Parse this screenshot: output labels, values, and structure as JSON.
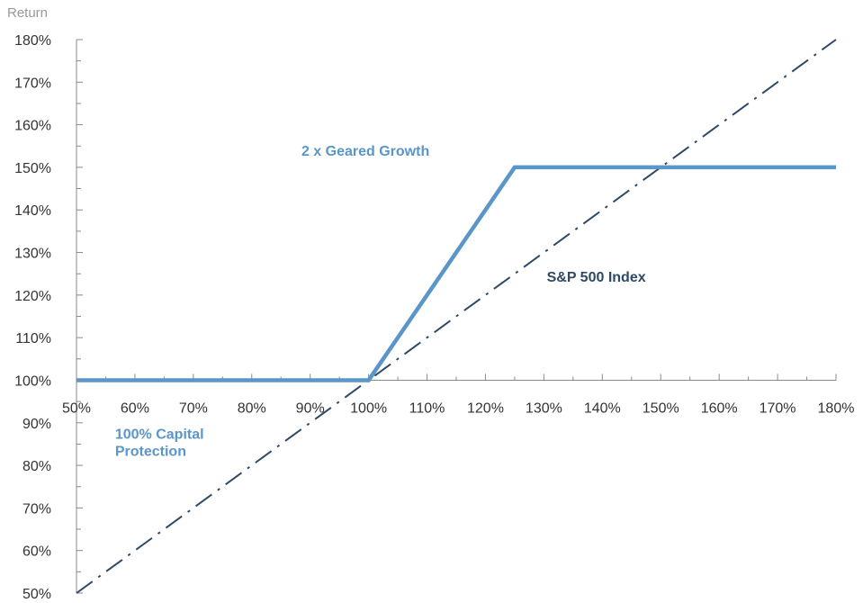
{
  "chart_data": {
    "type": "line",
    "title": "",
    "xlabel": "",
    "ylabel": "Return",
    "x_ticks": [
      "50%",
      "60%",
      "70%",
      "80%",
      "90%",
      "100%",
      "110%",
      "120%",
      "130%",
      "140%",
      "150%",
      "160%",
      "170%",
      "180%"
    ],
    "y_ticks": [
      "180%",
      "170%",
      "160%",
      "150%",
      "140%",
      "130%",
      "120%",
      "110%",
      "100%",
      "90%",
      "80%",
      "70%",
      "60%",
      "50%"
    ],
    "xlim": [
      50,
      180
    ],
    "ylim": [
      50,
      180
    ],
    "x_axis_crosses_at_y": 100,
    "grid": false,
    "series": [
      {
        "name": "2 x Geared Growth",
        "style": "solid",
        "color": "#5b96c9",
        "x": [
          50,
          100,
          125,
          180
        ],
        "y": [
          100,
          100,
          150,
          150
        ]
      },
      {
        "name": "S&P 500 Index",
        "style": "dash-dot",
        "color": "#2e4a66",
        "x": [
          50,
          180
        ],
        "y": [
          50,
          180
        ]
      }
    ],
    "annotations": [
      {
        "text": "2 x Geared Growth",
        "color": "#5b96c9"
      },
      {
        "text": "S&P 500 Index",
        "color": "#2e4a66"
      },
      {
        "text_lines": [
          "100% Capital",
          "Protection"
        ],
        "color": "#5b96c9"
      }
    ]
  }
}
